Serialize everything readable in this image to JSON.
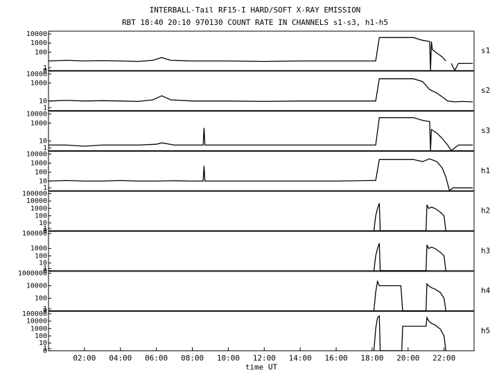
{
  "header": {
    "title": "INTERBALL-Tail RF15-I HARD/SOFT X-RAY EMISSION",
    "subtitle": "RBT 18:40 20:10 970130  COUNT RATE IN CHANNELS s1-s3, h1-h5"
  },
  "chart_data": [
    {
      "type": "line",
      "scale": "log1p",
      "xlim": [
        0,
        23.67
      ],
      "ylim": [
        0,
        20000
      ],
      "yticks": [
        0,
        1,
        100,
        1000,
        10000
      ],
      "series": [
        {
          "name": "s1",
          "color": "#000000",
          "x": [
            0,
            1,
            2,
            3,
            4,
            5,
            5.8,
            6.3,
            6.8,
            8,
            10,
            12,
            14,
            16,
            18,
            18.2,
            18.4,
            20.3,
            20.8,
            21.2,
            21.25,
            21.3,
            21.35,
            21.6,
            21.9,
            22.1,
            22.15,
            22.4,
            22.6,
            22.8,
            23.2,
            23.6
          ],
          "values": [
            10,
            12,
            10,
            11,
            10,
            9,
            12,
            25,
            12,
            10,
            10,
            9,
            10,
            10,
            10,
            10,
            4000,
            4000,
            2000,
            1500,
            0,
            1500,
            200,
            80,
            30,
            10,
            null,
            5,
            0,
            5,
            5,
            5
          ]
        }
      ]
    },
    {
      "type": "line",
      "scale": "log1p",
      "xlim": [
        0,
        23.67
      ],
      "ylim": [
        0,
        20000
      ],
      "yticks": [
        1,
        10,
        1000,
        10000
      ],
      "series": [
        {
          "name": "s2",
          "color": "#000000",
          "x": [
            0,
            1,
            2,
            3,
            4,
            5,
            5.8,
            6.3,
            6.8,
            8,
            10,
            12,
            14,
            16,
            18,
            18.2,
            18.4,
            20.3,
            20.8,
            21.2,
            21.6,
            21.9,
            22.2,
            22.6,
            23,
            23.6
          ],
          "values": [
            10,
            12,
            10,
            11,
            10,
            9,
            14,
            40,
            14,
            10,
            10,
            9,
            10,
            10,
            10,
            10,
            3000,
            3000,
            1500,
            200,
            80,
            30,
            10,
            8,
            9,
            8
          ]
        }
      ]
    },
    {
      "type": "line",
      "scale": "log1p",
      "xlim": [
        0,
        23.67
      ],
      "ylim": [
        0,
        20000
      ],
      "yticks": [
        1,
        10,
        1000,
        10000
      ],
      "series": [
        {
          "name": "s3",
          "color": "#000000",
          "x": [
            0,
            1,
            2,
            3,
            4,
            5,
            6,
            6.3,
            7,
            8,
            8.6,
            8.65,
            8.7,
            10,
            12,
            14,
            16,
            18,
            18.2,
            18.4,
            20.3,
            20.8,
            21.2,
            21.25,
            21.3,
            21.6,
            21.9,
            22.2,
            22.4,
            22.8,
            23.2,
            23.6
          ],
          "values": [
            3,
            3,
            2,
            3,
            3,
            3,
            4,
            6,
            3,
            3,
            3,
            300,
            3,
            3,
            3,
            3,
            3,
            3,
            3,
            4000,
            4000,
            2000,
            1500,
            0,
            200,
            80,
            20,
            3,
            0,
            3,
            3,
            3
          ]
        }
      ]
    },
    {
      "type": "line",
      "scale": "log1p",
      "xlim": [
        0,
        23.67
      ],
      "ylim": [
        0,
        20000
      ],
      "yticks": [
        1,
        10,
        100,
        1000,
        10000
      ],
      "series": [
        {
          "name": "h1",
          "color": "#000000",
          "x": [
            0,
            1,
            2,
            3,
            4,
            5,
            6,
            7,
            8,
            8.6,
            8.65,
            8.7,
            10,
            12,
            14,
            16,
            18,
            18.2,
            18.4,
            20.3,
            20.8,
            21.2,
            21.6,
            21.9,
            22.1,
            22.3,
            22.5,
            23,
            23.6
          ],
          "values": [
            10,
            12,
            10,
            10,
            12,
            10,
            10,
            11,
            10,
            10,
            500,
            10,
            10,
            10,
            10,
            10,
            12,
            12,
            2500,
            2500,
            1500,
            3000,
            1500,
            300,
            30,
            0,
            1,
            1,
            1
          ]
        }
      ]
    },
    {
      "type": "line",
      "scale": "log1p",
      "xlim": [
        0,
        23.67
      ],
      "ylim": [
        0,
        200000
      ],
      "yticks": [
        0,
        1,
        10,
        100,
        1000,
        10000,
        100000
      ],
      "series": [
        {
          "name": "h2",
          "color": "#000000",
          "x": [
            18.1,
            18.2,
            18.3,
            18.4,
            18.45,
            21,
            21.05,
            21.15,
            21.3,
            21.5,
            21.8,
            22,
            22.1
          ],
          "values": [
            0,
            100,
            1000,
            5000,
            0,
            0,
            3000,
            1000,
            1500,
            1000,
            300,
            100,
            0
          ]
        }
      ]
    },
    {
      "type": "line",
      "scale": "log1p",
      "xlim": [
        0,
        23.67
      ],
      "ylim": [
        0,
        200000
      ],
      "yticks": [
        0,
        1,
        10,
        100,
        1000,
        100000
      ],
      "series": [
        {
          "name": "h3",
          "color": "#000000",
          "x": [
            18.1,
            18.2,
            18.3,
            18.4,
            18.45,
            21,
            21.05,
            21.15,
            21.3,
            21.5,
            21.8,
            22,
            22.1
          ],
          "values": [
            0,
            100,
            1000,
            5000,
            0,
            0,
            3000,
            1000,
            1500,
            1000,
            300,
            100,
            0
          ]
        }
      ]
    },
    {
      "type": "line",
      "scale": "log1p",
      "xlim": [
        0,
        23.67
      ],
      "ylim": [
        0,
        2000000
      ],
      "yticks": [
        0,
        1,
        100,
        10000,
        1000000
      ],
      "series": [
        {
          "name": "h4",
          "color": "#000000",
          "x": [
            18.1,
            18.2,
            18.3,
            18.4,
            19.6,
            19.7,
            21,
            21.05,
            21.15,
            21.3,
            21.5,
            21.8,
            22,
            22.1
          ],
          "values": [
            0,
            1000,
            50000,
            10000,
            10000,
            0,
            0,
            20000,
            10000,
            5000,
            3000,
            800,
            100,
            0
          ]
        }
      ]
    },
    {
      "type": "line",
      "scale": "log1p",
      "xlim": [
        0,
        23.67
      ],
      "ylim": [
        0,
        200000
      ],
      "yticks": [
        0,
        1,
        10,
        100,
        1000,
        10000,
        100000
      ],
      "series": [
        {
          "name": "h5",
          "color": "#000000",
          "x": [
            18.1,
            18.2,
            18.3,
            18.4,
            18.45,
            19.65,
            19.7,
            21,
            21.05,
            21.15,
            21.3,
            21.5,
            21.8,
            22,
            22.1
          ],
          "values": [
            0,
            1000,
            30000,
            50000,
            0,
            0,
            2000,
            2000,
            30000,
            10000,
            5000,
            3000,
            800,
            100,
            0
          ],
          "xlabel": "time UT",
          "xticks": [
            {
              "value": 2,
              "label": "02:00"
            },
            {
              "value": 4,
              "label": "04:00"
            },
            {
              "value": 6,
              "label": "06:00"
            },
            {
              "value": 8,
              "label": "08:00"
            },
            {
              "value": 10,
              "label": "10:00"
            },
            {
              "value": 12,
              "label": "12:00"
            },
            {
              "value": 14,
              "label": "14:00"
            },
            {
              "value": 16,
              "label": "16:00"
            },
            {
              "value": 18,
              "label": "18:00"
            },
            {
              "value": 20,
              "label": "20:00"
            },
            {
              "value": 22,
              "label": "22:00"
            }
          ]
        }
      ]
    }
  ]
}
